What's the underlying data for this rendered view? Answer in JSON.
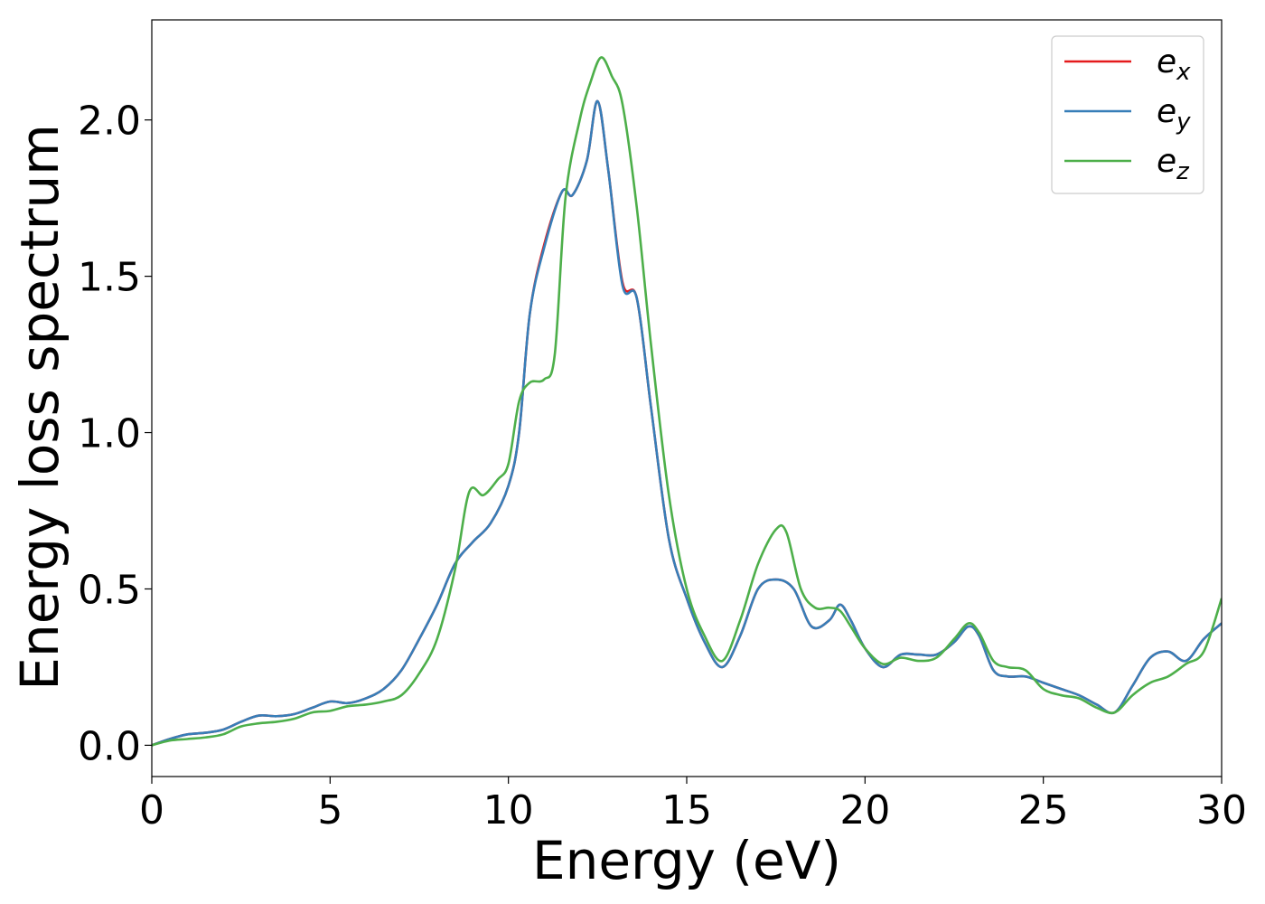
{
  "chart_data": {
    "type": "line",
    "xlabel": "Energy (eV)",
    "ylabel": "Energy loss spectrum",
    "xlim": [
      0,
      30
    ],
    "ylim": [
      -0.1,
      2.32
    ],
    "xticks": [
      0,
      5,
      10,
      15,
      20,
      25,
      30
    ],
    "xtick_labels": [
      "0",
      "5",
      "10",
      "15",
      "20",
      "25",
      "30"
    ],
    "yticks": [
      0.0,
      0.5,
      1.0,
      1.5,
      2.0
    ],
    "ytick_labels": [
      "0.0",
      "0.5",
      "1.0",
      "1.5",
      "2.0"
    ],
    "grid": false,
    "legend_position": "top-right",
    "series": [
      {
        "name": "e_x",
        "legend_base": "e",
        "legend_sub": "x",
        "color": "#e41a1c",
        "points": [
          [
            0,
            0
          ],
          [
            0.5,
            0.02
          ],
          [
            1,
            0.035
          ],
          [
            1.5,
            0.04
          ],
          [
            2,
            0.05
          ],
          [
            2.5,
            0.075
          ],
          [
            3,
            0.095
          ],
          [
            3.5,
            0.093
          ],
          [
            4,
            0.1
          ],
          [
            4.5,
            0.12
          ],
          [
            5,
            0.14
          ],
          [
            5.5,
            0.135
          ],
          [
            6,
            0.15
          ],
          [
            6.5,
            0.18
          ],
          [
            7,
            0.24
          ],
          [
            7.5,
            0.34
          ],
          [
            8,
            0.45
          ],
          [
            8.5,
            0.58
          ],
          [
            9,
            0.65
          ],
          [
            9.5,
            0.71
          ],
          [
            10,
            0.83
          ],
          [
            10.3,
            1.0
          ],
          [
            10.6,
            1.38
          ],
          [
            11,
            1.6
          ],
          [
            11.5,
            1.77
          ],
          [
            11.8,
            1.76
          ],
          [
            12.2,
            1.87
          ],
          [
            12.5,
            2.06
          ],
          [
            12.8,
            1.84
          ],
          [
            13.2,
            1.48
          ],
          [
            13.6,
            1.43
          ],
          [
            14,
            1.08
          ],
          [
            14.5,
            0.66
          ],
          [
            15,
            0.47
          ],
          [
            15.5,
            0.33
          ],
          [
            16,
            0.25
          ],
          [
            16.5,
            0.35
          ],
          [
            17,
            0.5
          ],
          [
            17.5,
            0.53
          ],
          [
            18,
            0.5
          ],
          [
            18.5,
            0.38
          ],
          [
            19,
            0.4
          ],
          [
            19.3,
            0.45
          ],
          [
            19.6,
            0.4
          ],
          [
            20,
            0.31
          ],
          [
            20.5,
            0.25
          ],
          [
            21,
            0.29
          ],
          [
            21.5,
            0.29
          ],
          [
            22,
            0.29
          ],
          [
            22.5,
            0.33
          ],
          [
            22.9,
            0.38
          ],
          [
            23.2,
            0.35
          ],
          [
            23.6,
            0.24
          ],
          [
            24,
            0.22
          ],
          [
            24.5,
            0.22
          ],
          [
            25,
            0.2
          ],
          [
            25.5,
            0.18
          ],
          [
            26,
            0.16
          ],
          [
            26.5,
            0.13
          ],
          [
            27,
            0.105
          ],
          [
            27.5,
            0.19
          ],
          [
            28,
            0.28
          ],
          [
            28.5,
            0.3
          ],
          [
            29,
            0.27
          ],
          [
            29.5,
            0.34
          ],
          [
            30,
            0.39
          ]
        ]
      },
      {
        "name": "e_y",
        "legend_base": "e",
        "legend_sub": "y",
        "color": "#377eb8",
        "points": [
          [
            0,
            0
          ],
          [
            0.5,
            0.02
          ],
          [
            1,
            0.035
          ],
          [
            1.5,
            0.04
          ],
          [
            2,
            0.05
          ],
          [
            2.5,
            0.075
          ],
          [
            3,
            0.095
          ],
          [
            3.5,
            0.093
          ],
          [
            4,
            0.1
          ],
          [
            4.5,
            0.12
          ],
          [
            5,
            0.14
          ],
          [
            5.5,
            0.135
          ],
          [
            6,
            0.15
          ],
          [
            6.5,
            0.18
          ],
          [
            7,
            0.24
          ],
          [
            7.5,
            0.34
          ],
          [
            8,
            0.45
          ],
          [
            8.5,
            0.58
          ],
          [
            9,
            0.65
          ],
          [
            9.5,
            0.71
          ],
          [
            10,
            0.83
          ],
          [
            10.3,
            1.0
          ],
          [
            10.6,
            1.38
          ],
          [
            11,
            1.59
          ],
          [
            11.5,
            1.77
          ],
          [
            11.8,
            1.76
          ],
          [
            12.2,
            1.87
          ],
          [
            12.5,
            2.06
          ],
          [
            12.8,
            1.84
          ],
          [
            13.2,
            1.47
          ],
          [
            13.6,
            1.43
          ],
          [
            14,
            1.08
          ],
          [
            14.5,
            0.66
          ],
          [
            15,
            0.47
          ],
          [
            15.5,
            0.33
          ],
          [
            16,
            0.25
          ],
          [
            16.5,
            0.35
          ],
          [
            17,
            0.5
          ],
          [
            17.5,
            0.53
          ],
          [
            18,
            0.5
          ],
          [
            18.5,
            0.38
          ],
          [
            19,
            0.4
          ],
          [
            19.3,
            0.45
          ],
          [
            19.6,
            0.4
          ],
          [
            20,
            0.31
          ],
          [
            20.5,
            0.25
          ],
          [
            21,
            0.29
          ],
          [
            21.5,
            0.29
          ],
          [
            22,
            0.29
          ],
          [
            22.5,
            0.33
          ],
          [
            22.9,
            0.38
          ],
          [
            23.2,
            0.35
          ],
          [
            23.6,
            0.24
          ],
          [
            24,
            0.22
          ],
          [
            24.5,
            0.22
          ],
          [
            25,
            0.2
          ],
          [
            25.5,
            0.18
          ],
          [
            26,
            0.16
          ],
          [
            26.5,
            0.13
          ],
          [
            27,
            0.105
          ],
          [
            27.5,
            0.19
          ],
          [
            28,
            0.28
          ],
          [
            28.5,
            0.3
          ],
          [
            29,
            0.27
          ],
          [
            29.5,
            0.34
          ],
          [
            30,
            0.39
          ]
        ]
      },
      {
        "name": "e_z",
        "legend_base": "e",
        "legend_sub": "z",
        "color": "#4daf4a",
        "points": [
          [
            0,
            0
          ],
          [
            0.5,
            0.015
          ],
          [
            1,
            0.02
          ],
          [
            1.5,
            0.025
          ],
          [
            2,
            0.035
          ],
          [
            2.5,
            0.06
          ],
          [
            3,
            0.07
          ],
          [
            3.5,
            0.075
          ],
          [
            4,
            0.085
          ],
          [
            4.5,
            0.105
          ],
          [
            5,
            0.11
          ],
          [
            5.5,
            0.125
          ],
          [
            6,
            0.13
          ],
          [
            6.5,
            0.14
          ],
          [
            7,
            0.16
          ],
          [
            7.5,
            0.23
          ],
          [
            8,
            0.34
          ],
          [
            8.5,
            0.56
          ],
          [
            8.9,
            0.81
          ],
          [
            9.3,
            0.8
          ],
          [
            9.7,
            0.85
          ],
          [
            10,
            0.9
          ],
          [
            10.3,
            1.1
          ],
          [
            10.6,
            1.16
          ],
          [
            11,
            1.17
          ],
          [
            11.3,
            1.25
          ],
          [
            11.6,
            1.75
          ],
          [
            12,
            2.0
          ],
          [
            12.3,
            2.12
          ],
          [
            12.6,
            2.2
          ],
          [
            12.9,
            2.14
          ],
          [
            13.2,
            2.05
          ],
          [
            13.6,
            1.72
          ],
          [
            14,
            1.28
          ],
          [
            14.5,
            0.8
          ],
          [
            15,
            0.5
          ],
          [
            15.5,
            0.35
          ],
          [
            16,
            0.27
          ],
          [
            16.5,
            0.4
          ],
          [
            17,
            0.58
          ],
          [
            17.5,
            0.69
          ],
          [
            17.8,
            0.68
          ],
          [
            18.2,
            0.5
          ],
          [
            18.6,
            0.44
          ],
          [
            19,
            0.44
          ],
          [
            19.3,
            0.43
          ],
          [
            19.6,
            0.38
          ],
          [
            20,
            0.31
          ],
          [
            20.5,
            0.26
          ],
          [
            21,
            0.28
          ],
          [
            21.5,
            0.27
          ],
          [
            22,
            0.28
          ],
          [
            22.5,
            0.34
          ],
          [
            22.9,
            0.39
          ],
          [
            23.2,
            0.36
          ],
          [
            23.6,
            0.27
          ],
          [
            24,
            0.25
          ],
          [
            24.5,
            0.24
          ],
          [
            25,
            0.18
          ],
          [
            25.5,
            0.16
          ],
          [
            26,
            0.15
          ],
          [
            26.5,
            0.12
          ],
          [
            27,
            0.105
          ],
          [
            27.5,
            0.16
          ],
          [
            28,
            0.2
          ],
          [
            28.5,
            0.22
          ],
          [
            29,
            0.26
          ],
          [
            29.5,
            0.3
          ],
          [
            30,
            0.47
          ]
        ]
      }
    ]
  }
}
